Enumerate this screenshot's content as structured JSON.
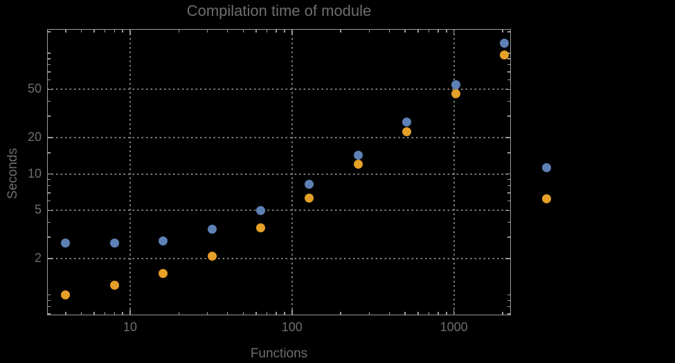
{
  "title": "Compilation time of module",
  "axes": {
    "xlabel": "Functions",
    "ylabel": "Seconds"
  },
  "colors": {
    "background": "#000000",
    "frame": "#9b9b9b",
    "grid": "#7d7d7d",
    "text": "#6e6e6e",
    "series_blue": "#5E81B5",
    "series_orange": "#E5A028"
  },
  "chart_data": {
    "type": "scatter",
    "title": "Compilation time of module",
    "xlabel": "Functions",
    "ylabel": "Seconds",
    "xscale": "log",
    "yscale": "log",
    "xlim": [
      3.07,
      2250
    ],
    "ylim": [
      0.68,
      158
    ],
    "grid": "dotted lines at labeled major ticks only",
    "legend_position": "right-outside-middle",
    "x": [
      4,
      8,
      16,
      32,
      64,
      128,
      256,
      512,
      1024,
      2048
    ],
    "series": [
      {
        "name": "blue",
        "color": "#5E81B5",
        "values": [
          2.7,
          2.7,
          2.8,
          3.5,
          5.0,
          8.2,
          14.3,
          27,
          55,
          120
        ]
      },
      {
        "name": "orange",
        "color": "#E5A028",
        "values": [
          1.0,
          1.2,
          1.5,
          2.1,
          3.6,
          6.3,
          12,
          22.5,
          46,
          97
        ]
      }
    ],
    "xticks": {
      "labeled": [
        10,
        100,
        1000
      ],
      "labels": [
        "10",
        "100",
        "1000"
      ],
      "minor": [
        4,
        5,
        6,
        7,
        8,
        9,
        20,
        30,
        40,
        50,
        60,
        70,
        80,
        90,
        200,
        300,
        400,
        500,
        600,
        700,
        800,
        900,
        2000
      ]
    },
    "yticks": {
      "labeled": [
        2,
        5,
        10,
        20,
        50
      ],
      "labels": [
        "2",
        "5",
        "10",
        "20",
        "50"
      ],
      "minor": [
        0.7,
        0.8,
        0.9,
        1,
        3,
        4,
        6,
        7,
        8,
        9,
        15,
        30,
        40,
        60,
        70,
        80,
        90,
        100,
        150
      ]
    },
    "legend": {
      "items": [
        {
          "series": "blue",
          "color": "#5E81B5",
          "label": ""
        },
        {
          "series": "orange",
          "color": "#E5A028",
          "label": ""
        }
      ]
    }
  }
}
